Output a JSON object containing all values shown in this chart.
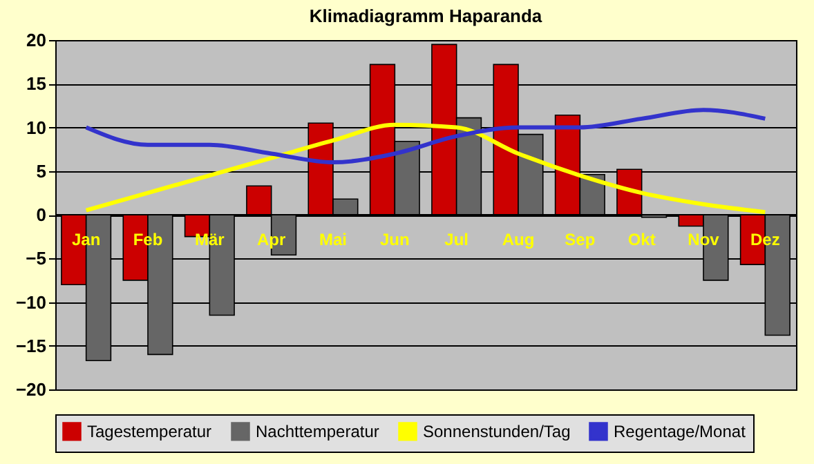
{
  "chart_data": {
    "type": "bar",
    "title": "Klimadiagramm Haparanda",
    "categories": [
      "Jan",
      "Feb",
      "Mär",
      "Apr",
      "Mai",
      "Jun",
      "Jul",
      "Aug",
      "Sep",
      "Okt",
      "Nov",
      "Dez"
    ],
    "series": [
      {
        "name": "Tagestemperatur",
        "color": "#cc0000",
        "values": [
          -8,
          -7.5,
          -2.5,
          3.3,
          10.5,
          17.2,
          19.5,
          17.2,
          11.4,
          5.2,
          -1.3,
          -5.7
        ]
      },
      {
        "name": "Nachttemperatur",
        "color": "#666666",
        "values": [
          -16.7,
          -16,
          -11.5,
          -4.6,
          1.8,
          8.4,
          11.1,
          9.2,
          4.6,
          -0.3,
          -7.5,
          -13.8
        ]
      },
      {
        "name": "Sonnenstunden/Tag",
        "type": "line",
        "color": "#ffff00",
        "values": [
          0.5,
          2.5,
          4.5,
          6.5,
          8.5,
          10.3,
          10,
          7,
          4.5,
          2.5,
          1.2,
          0.3
        ]
      },
      {
        "name": "Regentage/Monat",
        "type": "line",
        "color": "#3333cc",
        "values": [
          10,
          8,
          8,
          7,
          6,
          7,
          9,
          10,
          10,
          11,
          12,
          11
        ]
      }
    ],
    "ylim": [
      -20,
      20
    ],
    "yticks": [
      -20,
      -15,
      -10,
      -5,
      0,
      5,
      10,
      15,
      20
    ],
    "grid": "y",
    "legend": "bottom",
    "marker": "none",
    "line_style": "solid"
  }
}
